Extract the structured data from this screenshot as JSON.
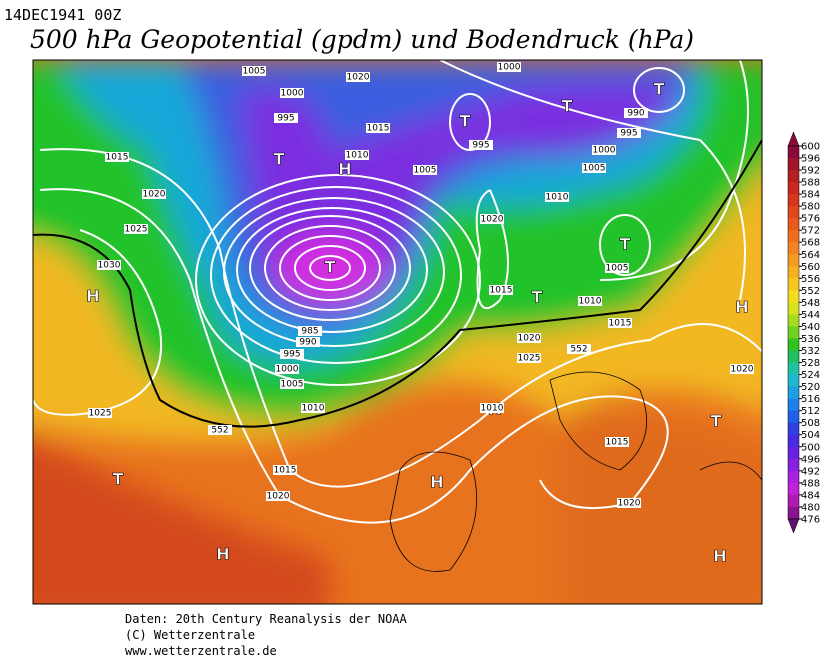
{
  "header": {
    "date": "14DEC1941 00Z",
    "title": "500 hPa Geopotential (gpdm) und Bodendruck (hPa)"
  },
  "legend": {
    "ticks": [
      600,
      596,
      592,
      588,
      584,
      580,
      576,
      572,
      568,
      564,
      560,
      556,
      552,
      548,
      544,
      540,
      536,
      532,
      528,
      524,
      520,
      516,
      512,
      508,
      504,
      500,
      496,
      492,
      488,
      484,
      480,
      476
    ]
  },
  "map": {
    "centers": [
      "H",
      "T",
      "H",
      "T",
      "T",
      "T",
      "T",
      "T",
      "T",
      "H",
      "T",
      "H",
      "H",
      "T",
      "H",
      "H"
    ],
    "isobars": [
      "1005",
      "1020",
      "1000",
      "1000",
      "995",
      "1015",
      "990",
      "995",
      "995",
      "1010",
      "1000",
      "1005",
      "1005",
      "1015",
      "1020",
      "1010",
      "1020",
      "1025",
      "1030",
      "1005",
      "1015",
      "1010",
      "1015",
      "1020",
      "1025",
      "1020",
      "985",
      "990",
      "995",
      "1000",
      "1005",
      "1010",
      "1025",
      "1015",
      "1020",
      "1015",
      "1020",
      "1010",
      "552",
      "552"
    ]
  },
  "footer": {
    "lines": [
      "Daten: 20th Century Reanalysis der NOAA",
      "(C) Wetterzentrale",
      "www.wetterzentrale.de"
    ]
  }
}
